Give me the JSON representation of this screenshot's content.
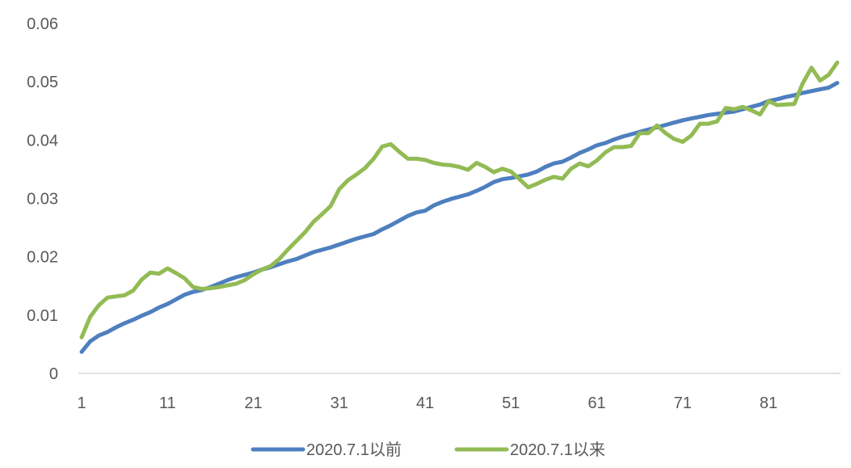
{
  "chart_data": {
    "type": "line",
    "title": "",
    "xlabel": "",
    "ylabel": "",
    "x_range": [
      1,
      89
    ],
    "ylim": [
      0,
      0.06
    ],
    "x_ticks": [
      "1",
      "11",
      "21",
      "31",
      "41",
      "51",
      "61",
      "71",
      "81"
    ],
    "y_ticks": [
      "0",
      "0.01",
      "0.02",
      "0.03",
      "0.04",
      "0.05",
      "0.06"
    ],
    "grid": false,
    "legend_position": "bottom",
    "series": [
      {
        "name": "2020.7.1以前",
        "color": "#4E7FBF",
        "values": [
          0.0037,
          0.0055,
          0.0065,
          0.0071,
          0.0079,
          0.0086,
          0.0092,
          0.0099,
          0.0105,
          0.0113,
          0.0119,
          0.0127,
          0.0135,
          0.014,
          0.0143,
          0.0148,
          0.0154,
          0.016,
          0.0165,
          0.0169,
          0.0173,
          0.0178,
          0.0182,
          0.0187,
          0.0192,
          0.0196,
          0.0202,
          0.0208,
          0.0212,
          0.0216,
          0.0221,
          0.0226,
          0.0231,
          0.0235,
          0.0239,
          0.0247,
          0.0254,
          0.0262,
          0.027,
          0.0276,
          0.0279,
          0.0288,
          0.0294,
          0.0299,
          0.0303,
          0.0307,
          0.0313,
          0.032,
          0.0328,
          0.0333,
          0.0335,
          0.0338,
          0.0341,
          0.0346,
          0.0354,
          0.036,
          0.0363,
          0.037,
          0.0378,
          0.0384,
          0.0391,
          0.0395,
          0.0401,
          0.0406,
          0.041,
          0.0414,
          0.0418,
          0.0422,
          0.0426,
          0.043,
          0.0434,
          0.0437,
          0.044,
          0.0443,
          0.0445,
          0.0447,
          0.0449,
          0.0453,
          0.0457,
          0.0461,
          0.0467,
          0.047,
          0.0474,
          0.0477,
          0.0481,
          0.0484,
          0.0487,
          0.049,
          0.0498
        ]
      },
      {
        "name": "2020.7.1以来",
        "color": "#93BB55",
        "values": [
          0.0062,
          0.0097,
          0.0117,
          0.013,
          0.0132,
          0.0134,
          0.0142,
          0.0161,
          0.0173,
          0.0171,
          0.018,
          0.0172,
          0.0163,
          0.0148,
          0.0145,
          0.0146,
          0.0148,
          0.0151,
          0.0154,
          0.016,
          0.017,
          0.0178,
          0.0184,
          0.0196,
          0.0212,
          0.0227,
          0.0242,
          0.026,
          0.0273,
          0.0287,
          0.0316,
          0.0331,
          0.0341,
          0.0352,
          0.0368,
          0.0389,
          0.0393,
          0.038,
          0.0368,
          0.0368,
          0.0366,
          0.0361,
          0.0358,
          0.0357,
          0.0354,
          0.0349,
          0.0361,
          0.0354,
          0.0345,
          0.0351,
          0.0346,
          0.0333,
          0.0319,
          0.0325,
          0.0332,
          0.0337,
          0.0334,
          0.0351,
          0.036,
          0.0355,
          0.0365,
          0.0379,
          0.0388,
          0.0388,
          0.039,
          0.0412,
          0.0412,
          0.0425,
          0.0412,
          0.0402,
          0.0397,
          0.0408,
          0.0428,
          0.0428,
          0.0432,
          0.0455,
          0.0453,
          0.0457,
          0.0451,
          0.0444,
          0.0467,
          0.046,
          0.0461,
          0.0462,
          0.0498,
          0.0524,
          0.0502,
          0.0512,
          0.0533
        ]
      }
    ]
  }
}
